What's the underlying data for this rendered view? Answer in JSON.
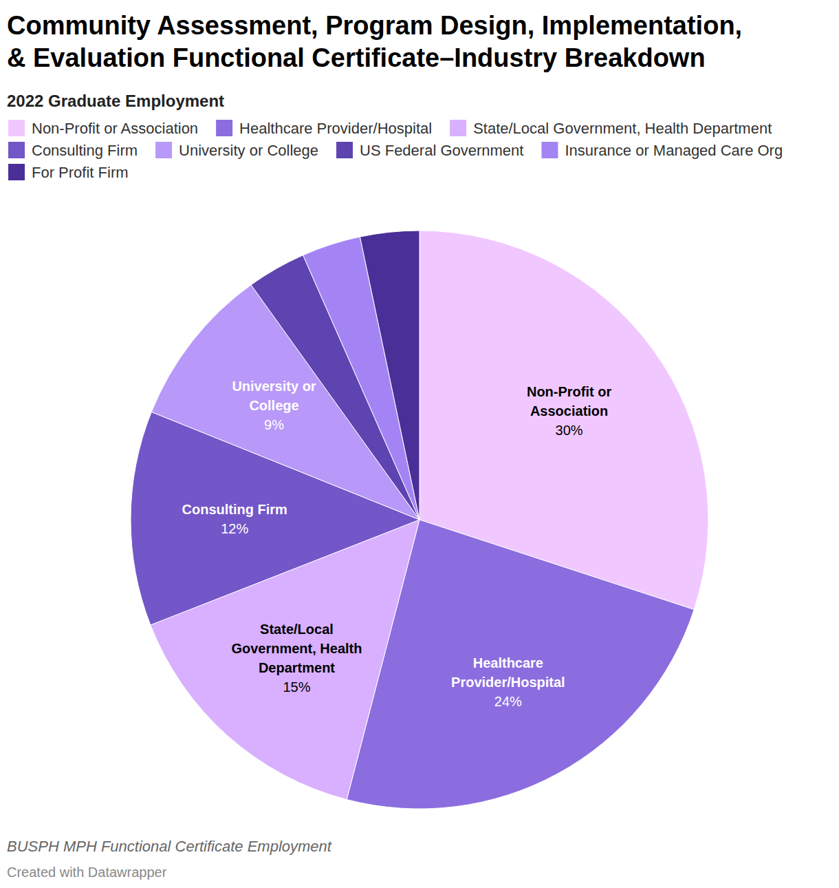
{
  "chart_data": {
    "type": "pie",
    "title": [
      "Community Assessment, Program Design, Implementation,",
      "& Evaluation Functional Certificate–Industry Breakdown"
    ],
    "subtitle": "2022 Graduate Employment",
    "categories": [
      "Non-Profit or Association",
      "Healthcare Provider/Hospital",
      "State/Local Government, Health Department",
      "Consulting Firm",
      "University or College",
      "US Federal Government",
      "Insurance or Managed Care Org",
      "For Profit Firm"
    ],
    "values": [
      30,
      24,
      15,
      12,
      9,
      3.3,
      3.3,
      3.3
    ],
    "value_labels": [
      "30%",
      "24%",
      "15%",
      "12%",
      "9%",
      null,
      null,
      null
    ],
    "colors": [
      "#f0c8ff",
      "#8b6ddf",
      "#d8b0ff",
      "#7356c8",
      "#b898f8",
      "#5e44b0",
      "#a484f4",
      "#4a2f98"
    ],
    "data_labels": true,
    "legend": "top",
    "source": "BUSPH MPH Functional Certificate Employment",
    "credit": "Created with Datawrapper"
  }
}
